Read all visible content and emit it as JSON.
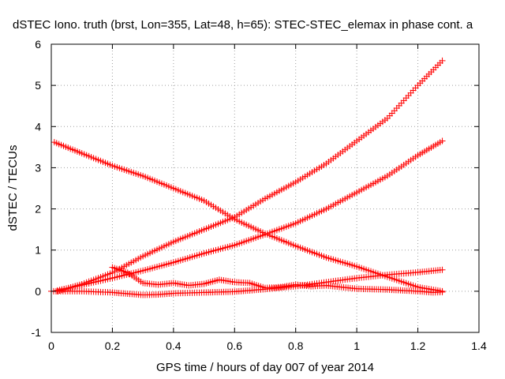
{
  "chart_data": {
    "type": "scatter",
    "title": "dSTEC Iono. truth (brst, Lon=355, Lat=48, h=65): STEC-STEC_elemax in phase cont. a",
    "xlabel": "GPS time / hours of day 007 of year 2014",
    "ylabel": "dSTEC  / TECUs",
    "xlim": [
      0,
      1.4
    ],
    "ylim": [
      -1,
      6
    ],
    "x_ticks": [
      "0",
      "0.2",
      "0.4",
      "0.6",
      "0.8",
      "1",
      "1.2",
      "1.4"
    ],
    "y_ticks": [
      "-1",
      "0",
      "1",
      "2",
      "3",
      "4",
      "5",
      "6"
    ],
    "grid": true,
    "marker": "+",
    "series_color": "#ff0000",
    "series": [
      {
        "x": [
          0.02,
          0.1,
          0.2,
          0.3,
          0.4,
          0.5,
          0.6,
          0.7,
          0.8,
          0.9,
          1.0,
          1.1,
          1.2,
          1.28
        ],
        "y": [
          0.0,
          0.17,
          0.45,
          0.85,
          1.2,
          1.5,
          1.8,
          2.25,
          2.65,
          3.1,
          3.65,
          4.2,
          5.0,
          5.6
        ]
      },
      {
        "x": [
          0.02,
          0.1,
          0.2,
          0.3,
          0.4,
          0.5,
          0.6,
          0.7,
          0.8,
          0.9,
          1.0,
          1.1,
          1.2,
          1.28
        ],
        "y": [
          0.02,
          0.15,
          0.32,
          0.5,
          0.7,
          0.92,
          1.12,
          1.38,
          1.65,
          2.0,
          2.4,
          2.8,
          3.3,
          3.65
        ]
      },
      {
        "x": [
          0.01,
          0.1,
          0.2,
          0.3,
          0.4,
          0.5,
          0.6,
          0.7,
          0.8,
          0.9,
          1.0,
          1.1,
          1.2,
          1.28
        ],
        "y": [
          3.62,
          3.35,
          3.05,
          2.8,
          2.5,
          2.2,
          1.75,
          1.4,
          1.1,
          0.82,
          0.6,
          0.35,
          0.1,
          0.0
        ]
      },
      {
        "x": [
          0.0,
          0.1,
          0.2,
          0.25,
          0.3,
          0.35,
          0.4,
          0.5,
          0.55,
          0.6,
          0.65,
          0.7,
          0.8,
          0.9,
          1.0,
          1.1,
          1.2,
          1.28
        ],
        "y": [
          0.0,
          0.0,
          -0.03,
          -0.06,
          -0.09,
          -0.08,
          -0.05,
          -0.03,
          -0.02,
          -0.01,
          0.02,
          0.05,
          0.12,
          0.22,
          0.32,
          0.4,
          0.46,
          0.52
        ]
      },
      {
        "x": [
          0.2,
          0.25,
          0.3,
          0.35,
          0.4,
          0.45,
          0.5,
          0.55,
          0.6,
          0.65,
          0.7,
          0.75,
          0.8,
          0.85,
          0.9,
          0.95,
          1.0,
          1.05,
          1.1,
          1.15,
          1.2,
          1.25,
          1.28
        ],
        "y": [
          0.58,
          0.45,
          0.2,
          0.16,
          0.2,
          0.14,
          0.18,
          0.28,
          0.22,
          0.2,
          0.08,
          0.1,
          0.16,
          0.12,
          0.14,
          0.1,
          0.06,
          0.05,
          0.04,
          0.02,
          0.0,
          -0.03,
          -0.02
        ]
      }
    ]
  }
}
